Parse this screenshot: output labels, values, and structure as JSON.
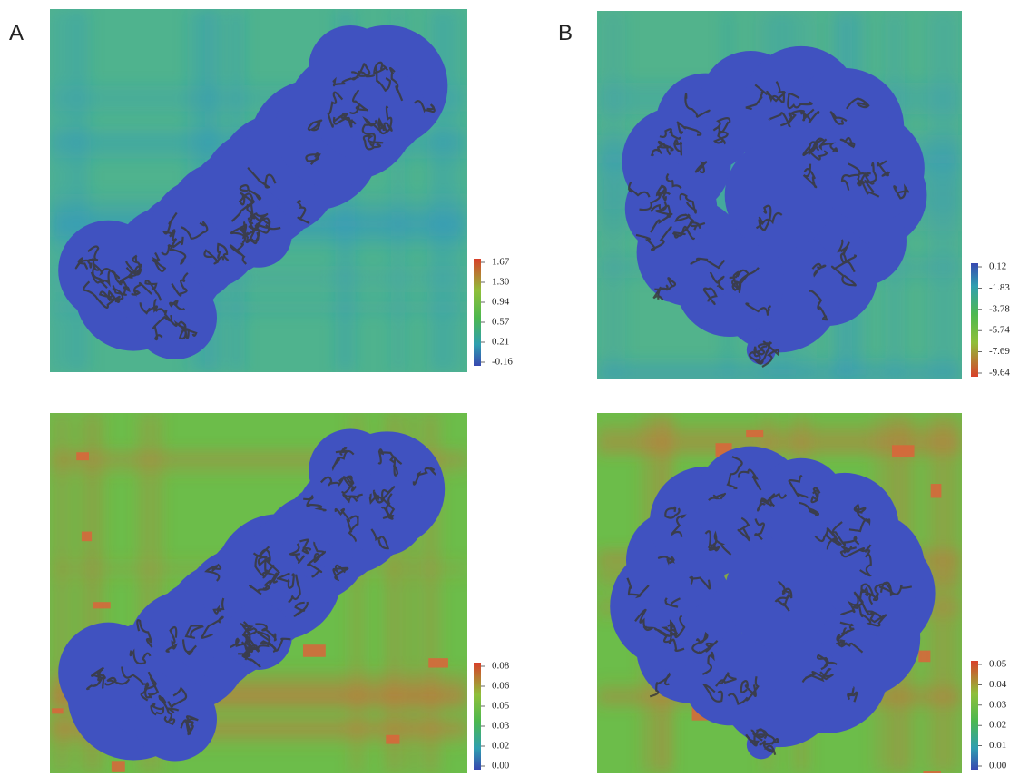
{
  "panels": [
    {
      "label": "A",
      "plots": [
        {
          "colorbar": {
            "ticks": [
              "1.67",
              "1.30",
              "0.94",
              "0.57",
              "0.21",
              "-0.16"
            ]
          }
        },
        {
          "colorbar": {
            "ticks": [
              "0.08",
              "0.06",
              "0.05",
              "0.03",
              "0.02",
              "0.00"
            ]
          }
        }
      ]
    },
    {
      "label": "B",
      "plots": [
        {
          "colorbar": {
            "ticks": [
              "0.12",
              "-1.83",
              "-3.78",
              "-5.74",
              "-7.69",
              "-9.64"
            ]
          }
        },
        {
          "colorbar": {
            "ticks": [
              "0.05",
              "0.04",
              "0.03",
              "0.02",
              "0.01",
              "0.00"
            ]
          }
        }
      ]
    }
  ]
}
